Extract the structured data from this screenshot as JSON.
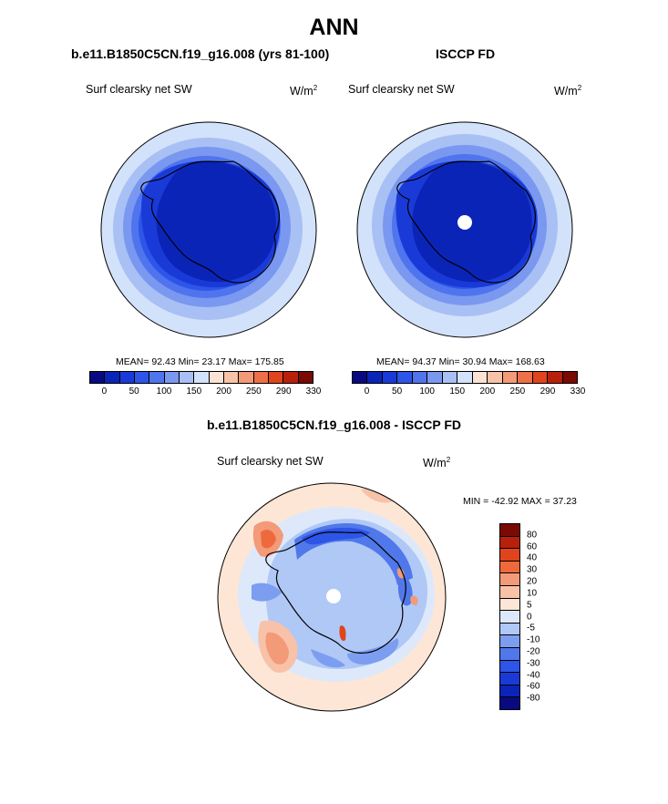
{
  "title": "ANN",
  "panels": {
    "model": {
      "title": "b.e11.B1850C5CN.f19_g16.008 (yrs 81-100)",
      "variable": "Surf clearsky net SW",
      "units_base": "W/m",
      "units_exp": "2",
      "stats": "MEAN=  92.43  Min=  23.17  Max= 175.85"
    },
    "obs": {
      "title": "ISCCP FD",
      "variable": "Surf clearsky net SW",
      "units_base": "W/m",
      "units_exp": "2",
      "stats": "MEAN=  94.37  Min=  30.94  Max= 168.63"
    },
    "diff": {
      "title": "b.e11.B1850C5CN.f19_g16.008 - ISCCP FD",
      "variable": "Surf clearsky net SW",
      "units_base": "W/m",
      "units_exp": "2",
      "stats": "MIN = -42.92 MAX =  37.23"
    }
  },
  "colorbar_abs": {
    "colors": [
      "#0a0a80",
      "#0b24b8",
      "#1a3ad8",
      "#2d55e8",
      "#4f74ee",
      "#7a98f0",
      "#a9c0f5",
      "#d2e2fa",
      "#fbe2d2",
      "#f8c2a8",
      "#f39a78",
      "#ee7048",
      "#e0441c",
      "#b8200c",
      "#7a0a04"
    ],
    "ticks": [
      "0",
      "50",
      "100",
      "150",
      "200",
      "250",
      "290",
      "330"
    ]
  },
  "colorbar_diff": {
    "colors": [
      "#7a0a04",
      "#b8200c",
      "#e0441c",
      "#ee6a3c",
      "#f39a78",
      "#f8c2a8",
      "#fde6d6",
      "#dde9fb",
      "#b0c8f5",
      "#7d9df0",
      "#5078ea",
      "#2d55e8",
      "#1a3ad8",
      "#0b24b8",
      "#0a0a80"
    ],
    "ticks": [
      "80",
      "60",
      "40",
      "30",
      "20",
      "10",
      "5",
      "0",
      "-5",
      "-10",
      "-20",
      "-30",
      "-40",
      "-60",
      "-80"
    ]
  }
}
